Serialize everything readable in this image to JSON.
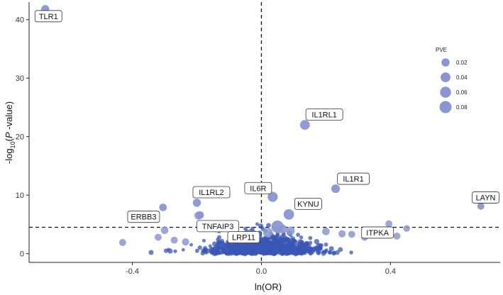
{
  "chart_data": {
    "type": "scatter",
    "title": "",
    "xlabel": "ln(OR)",
    "ylabel_parts": [
      "-log",
      "10",
      "(",
      "P",
      " -value)"
    ],
    "xlim": [
      -0.72,
      0.74
    ],
    "ylim": [
      -1.5,
      43
    ],
    "x_ticks": [
      {
        "value": -0.4,
        "label": "-0.4"
      },
      {
        "value": 0.0,
        "label": "0.0"
      },
      {
        "value": 0.4,
        "label": "0.4"
      }
    ],
    "y_ticks": [
      {
        "value": 0,
        "label": "0"
      },
      {
        "value": 10,
        "label": "10"
      },
      {
        "value": 20,
        "label": "20"
      },
      {
        "value": 30,
        "label": "30"
      },
      {
        "value": 40,
        "label": "40"
      }
    ],
    "reference_lines": {
      "vertical_x": 0.0,
      "horizontal_y": 4.5,
      "style": "dashed"
    },
    "point_color": "#3A56B5",
    "highlight_color": "#8A96D2",
    "labeled_points": [
      {
        "gene": "TLR1",
        "x": -0.67,
        "y": 41.8,
        "pve": 0.02
      },
      {
        "gene": "IL1RL1",
        "x": 0.135,
        "y": 22.0,
        "pve": 0.04
      },
      {
        "gene": "IL1R1",
        "x": 0.23,
        "y": 11.1,
        "pve": 0.025
      },
      {
        "gene": "IL6R",
        "x": 0.035,
        "y": 9.7,
        "pve": 0.045
      },
      {
        "gene": "IL1RL2",
        "x": -0.2,
        "y": 8.7,
        "pve": 0.02
      },
      {
        "gene": "LAYN",
        "x": 0.68,
        "y": 8.1,
        "pve": 0.01
      },
      {
        "gene": "ERBB3",
        "x": -0.305,
        "y": 7.9,
        "pve": 0.015
      },
      {
        "gene": "KYNU",
        "x": 0.085,
        "y": 6.7,
        "pve": 0.05
      },
      {
        "gene": "TNFAIP3",
        "x": -0.19,
        "y": 6.6,
        "pve": 0.015
      },
      {
        "gene": "LRP11",
        "x": 0.05,
        "y": 4.6,
        "pve": 0.085
      },
      {
        "gene": "ITPKA",
        "x": 0.33,
        "y": 3.4,
        "pve": 0.01
      }
    ],
    "label_offsets": [
      {
        "gene": "TLR1",
        "x": -0.66,
        "y": 40.6
      },
      {
        "gene": "IL1RL1",
        "x": 0.195,
        "y": 23.8
      },
      {
        "gene": "IL1R1",
        "x": 0.285,
        "y": 12.8
      },
      {
        "gene": "IL6R",
        "x": -0.01,
        "y": 11.2
      },
      {
        "gene": "IL1RL2",
        "x": -0.155,
        "y": 10.5
      },
      {
        "gene": "LAYN",
        "x": 0.695,
        "y": 9.6
      },
      {
        "gene": "ERBB3",
        "x": -0.365,
        "y": 6.3
      },
      {
        "gene": "KYNU",
        "x": 0.145,
        "y": 8.5
      },
      {
        "gene": "TNFAIP3",
        "x": -0.135,
        "y": 4.7
      },
      {
        "gene": "LRP11",
        "x": -0.055,
        "y": 2.8
      },
      {
        "gene": "ITPKA",
        "x": 0.36,
        "y": 3.6
      }
    ],
    "other_highlight_points": [
      {
        "x": -0.43,
        "y": 1.9,
        "pve": 0.01
      },
      {
        "x": -0.32,
        "y": 2.8,
        "pve": 0.01
      },
      {
        "x": -0.3,
        "y": 4.0,
        "pve": 0.015
      },
      {
        "x": -0.27,
        "y": 2.3,
        "pve": 0.01
      },
      {
        "x": -0.235,
        "y": 2.0,
        "pve": 0.012
      },
      {
        "x": -0.195,
        "y": 6.5,
        "pve": 0.02
      },
      {
        "x": -0.14,
        "y": 4.3,
        "pve": 0.015
      },
      {
        "x": -0.09,
        "y": 4.0,
        "pve": 0.02
      },
      {
        "x": -0.04,
        "y": 3.2,
        "pve": 0.03
      },
      {
        "x": 0.02,
        "y": 3.6,
        "pve": 0.04
      },
      {
        "x": 0.065,
        "y": 4.2,
        "pve": 0.03
      },
      {
        "x": 0.09,
        "y": 3.9,
        "pve": 0.025
      },
      {
        "x": 0.2,
        "y": 3.8,
        "pve": 0.015
      },
      {
        "x": 0.25,
        "y": 3.4,
        "pve": 0.012
      },
      {
        "x": 0.28,
        "y": 3.3,
        "pve": 0.01
      },
      {
        "x": 0.32,
        "y": 2.8,
        "pve": 0.01
      },
      {
        "x": 0.36,
        "y": 3.9,
        "pve": 0.012
      },
      {
        "x": 0.395,
        "y": 5.1,
        "pve": 0.01
      },
      {
        "x": 0.42,
        "y": 3.0,
        "pve": 0.01
      },
      {
        "x": 0.45,
        "y": 4.3,
        "pve": 0.008
      }
    ],
    "legend": {
      "title": "PVE",
      "entries": [
        {
          "label": "0.02",
          "pve": 0.02
        },
        {
          "label": "0.04",
          "pve": 0.04
        },
        {
          "label": "0.06",
          "pve": 0.06
        },
        {
          "label": "0.08",
          "pve": 0.08
        }
      ],
      "placement": "right"
    }
  }
}
